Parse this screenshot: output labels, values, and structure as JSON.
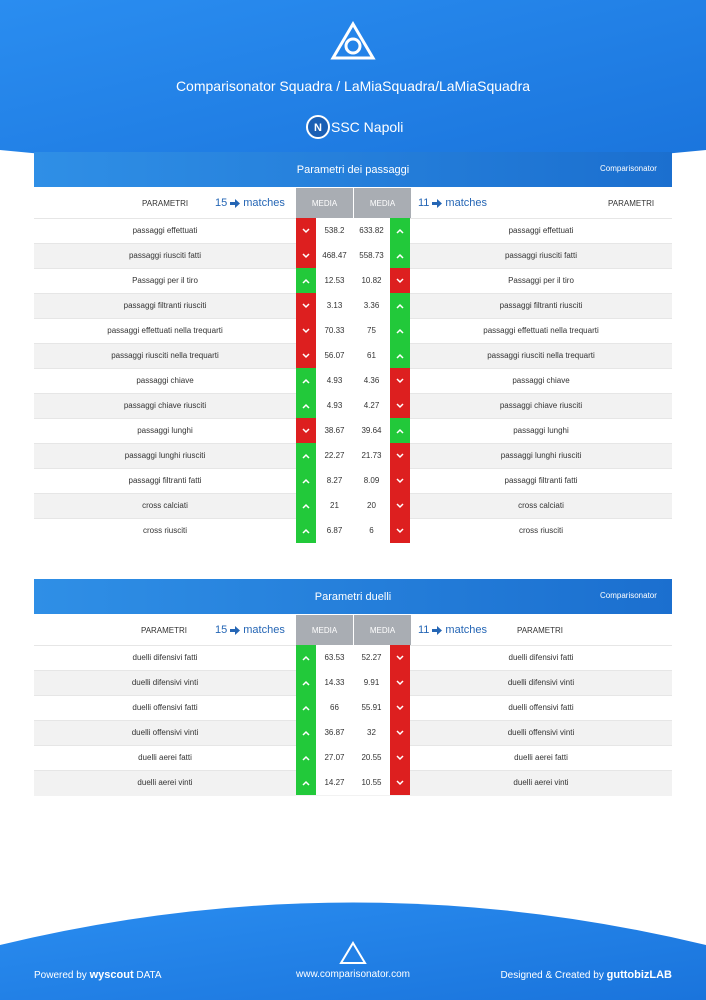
{
  "header": {
    "title": "Comparisonator Squadra / LaMiaSquadra/LaMiaSquadra",
    "team": "SSC Napoli"
  },
  "labels": {
    "brand": "Comparisonator",
    "param": "PARAMETRI",
    "media": "MEDIA",
    "matches": "matches",
    "left_matches": 15,
    "right_matches": 11
  },
  "sections": [
    {
      "title": "Parametri dei passaggi",
      "rows": [
        {
          "param": "passaggi effettuati",
          "left": 538.2,
          "right": 633.82
        },
        {
          "param": "passaggi riusciti fatti",
          "left": 468.47,
          "right": 558.73
        },
        {
          "param": "Passaggi per il tiro",
          "left": 12.53,
          "right": 10.82
        },
        {
          "param": "passaggi filtranti riusciti",
          "left": 3.13,
          "right": 3.36
        },
        {
          "param": "passaggi effettuati nella trequarti",
          "left": 70.33,
          "right": 75
        },
        {
          "param": "passaggi riusciti nella trequarti",
          "left": 56.07,
          "right": 61
        },
        {
          "param": "passaggi chiave",
          "left": 4.93,
          "right": 4.36
        },
        {
          "param": "passaggi chiave riusciti",
          "left": 4.93,
          "right": 4.27
        },
        {
          "param": "passaggi lunghi",
          "left": 38.67,
          "right": 39.64
        },
        {
          "param": "passaggi lunghi riusciti",
          "left": 22.27,
          "right": 21.73
        },
        {
          "param": "passaggi filtranti fatti",
          "left": 8.27,
          "right": 8.09
        },
        {
          "param": "cross calciati",
          "left": 21,
          "right": 20
        },
        {
          "param": "cross riusciti",
          "left": 6.87,
          "right": 6
        }
      ]
    },
    {
      "title": "Parametri duelli",
      "rows": [
        {
          "param": "duelli difensivi fatti",
          "left": 63.53,
          "right": 52.27
        },
        {
          "param": "duelli difensivi vinti",
          "left": 14.33,
          "right": 9.91
        },
        {
          "param": "duelli offensivi fatti",
          "left": 66,
          "right": 55.91
        },
        {
          "param": "duelli offensivi vinti",
          "left": 36.87,
          "right": 32
        },
        {
          "param": "duelli aerei fatti",
          "left": 27.07,
          "right": 20.55
        },
        {
          "param": "duelli aerei vinti",
          "left": 14.27,
          "right": 10.55
        }
      ]
    }
  ],
  "footer": {
    "powered": "Powered by",
    "wyscout": "wyscout",
    "data": "DATA",
    "site": "www.comparisonator.com",
    "designed": "Designed & Created by",
    "lab": "guttobizLAB"
  }
}
